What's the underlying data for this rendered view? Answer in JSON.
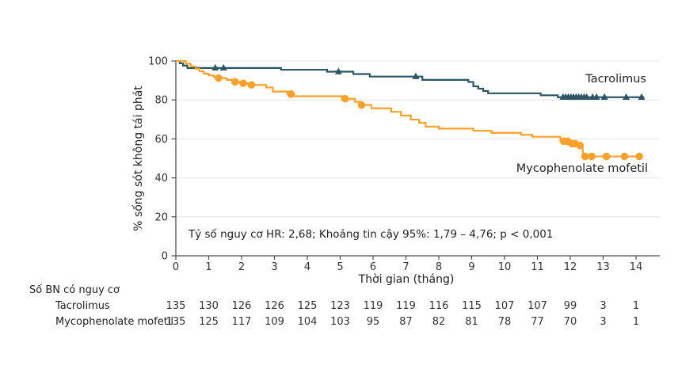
{
  "chart_data": {
    "type": "line",
    "subtype": "kaplan-meier-step",
    "title": "",
    "xlabel": "Thời gian (tháng)",
    "ylabel": "% sống sót không tái phát",
    "xlim": [
      0,
      14.7
    ],
    "ylim": [
      0,
      100
    ],
    "x_ticks": [
      0,
      1,
      2,
      3,
      4,
      5,
      6,
      7,
      8,
      9,
      10,
      11,
      12,
      13,
      14
    ],
    "y_ticks": [
      0,
      20,
      40,
      60,
      80,
      100
    ],
    "grid": "horizontal",
    "annotation": "Tỷ số nguy cơ HR: 2,68; Khoảng tin cậy 95%: 1,79 – 4,76; p < 0,001",
    "colors": {
      "tacrolimus": "#2d5566",
      "mmf": "#f9a12b",
      "grid": "#e4e4e4",
      "axis": "#4d4d4d",
      "text": "#333333"
    },
    "series": [
      {
        "name": "Tacrolimus",
        "color": "#2d5566",
        "marker": "triangle",
        "end_t": 14.25,
        "steps": [
          [
            0,
            100
          ],
          [
            0.12,
            98.8
          ],
          [
            0.22,
            97.6
          ],
          [
            0.35,
            96.4
          ],
          [
            3.2,
            95.5
          ],
          [
            4.6,
            94.5
          ],
          [
            5.4,
            93.3
          ],
          [
            5.9,
            92.0
          ],
          [
            7.5,
            90.3
          ],
          [
            8.9,
            89.2
          ],
          [
            9.05,
            87.0
          ],
          [
            9.2,
            85.8
          ],
          [
            9.35,
            84.6
          ],
          [
            9.5,
            83.4
          ],
          [
            11.1,
            82.4
          ],
          [
            11.62,
            81.4
          ]
        ],
        "censors": [
          [
            1.2,
            96.4
          ],
          [
            1.45,
            96.4
          ],
          [
            4.95,
            94.5
          ],
          [
            7.3,
            92.0
          ],
          [
            11.78,
            81.4
          ],
          [
            11.86,
            81.4
          ],
          [
            11.94,
            81.4
          ],
          [
            12.02,
            81.4
          ],
          [
            12.1,
            81.4
          ],
          [
            12.18,
            81.4
          ],
          [
            12.26,
            81.4
          ],
          [
            12.34,
            81.4
          ],
          [
            12.42,
            81.4
          ],
          [
            12.5,
            81.4
          ],
          [
            12.68,
            81.4
          ],
          [
            12.8,
            81.4
          ],
          [
            13.04,
            81.4
          ],
          [
            13.7,
            81.4
          ],
          [
            14.17,
            81.4
          ]
        ]
      },
      {
        "name": "Mycophenolate mofetil",
        "color": "#f9a12b",
        "marker": "circle",
        "end_t": 14.2,
        "steps": [
          [
            0,
            100
          ],
          [
            0.3,
            98.6
          ],
          [
            0.45,
            97.2
          ],
          [
            0.6,
            95.9
          ],
          [
            0.72,
            94.7
          ],
          [
            0.85,
            93.5
          ],
          [
            1.0,
            92.6
          ],
          [
            1.15,
            91.9
          ],
          [
            1.28,
            91.2
          ],
          [
            1.55,
            90.3
          ],
          [
            1.75,
            89.3
          ],
          [
            1.95,
            88.5
          ],
          [
            2.2,
            87.7
          ],
          [
            2.75,
            86.4
          ],
          [
            2.95,
            84.3
          ],
          [
            3.4,
            83.0
          ],
          [
            3.6,
            81.9
          ],
          [
            5.05,
            80.6
          ],
          [
            5.45,
            79.0
          ],
          [
            5.6,
            77.4
          ],
          [
            5.95,
            75.7
          ],
          [
            6.55,
            73.9
          ],
          [
            6.85,
            72.0
          ],
          [
            7.15,
            69.9
          ],
          [
            7.4,
            68.3
          ],
          [
            7.6,
            66.3
          ],
          [
            8.0,
            65.3
          ],
          [
            9.05,
            64.2
          ],
          [
            9.6,
            63.1
          ],
          [
            10.5,
            62.1
          ],
          [
            10.85,
            61.1
          ],
          [
            11.7,
            58.8
          ],
          [
            12.0,
            57.6
          ],
          [
            12.25,
            56.6
          ],
          [
            12.38,
            51.0
          ]
        ],
        "censors": [
          [
            1.3,
            91.2
          ],
          [
            1.8,
            89.3
          ],
          [
            2.05,
            88.5
          ],
          [
            2.3,
            87.7
          ],
          [
            3.5,
            83.0
          ],
          [
            5.15,
            80.6
          ],
          [
            5.65,
            77.4
          ],
          [
            11.8,
            58.8
          ],
          [
            11.92,
            58.8
          ],
          [
            12.05,
            57.6
          ],
          [
            12.15,
            57.6
          ],
          [
            12.3,
            56.6
          ],
          [
            12.45,
            51.0
          ],
          [
            12.65,
            51.0
          ],
          [
            13.1,
            51.0
          ],
          [
            13.65,
            51.0
          ],
          [
            14.1,
            51.0
          ]
        ]
      }
    ],
    "risk_table": {
      "header": "Số BN có nguy cơ",
      "rows": [
        {
          "label": "Tacrolimus",
          "values": [
            135,
            130,
            126,
            126,
            125,
            123,
            119,
            119,
            116,
            115,
            107,
            107,
            99,
            3,
            1
          ]
        },
        {
          "label": "Mycophenolate mofetil",
          "values": [
            135,
            125,
            117,
            109,
            104,
            103,
            95,
            87,
            82,
            81,
            78,
            77,
            70,
            3,
            1
          ]
        }
      ]
    }
  }
}
